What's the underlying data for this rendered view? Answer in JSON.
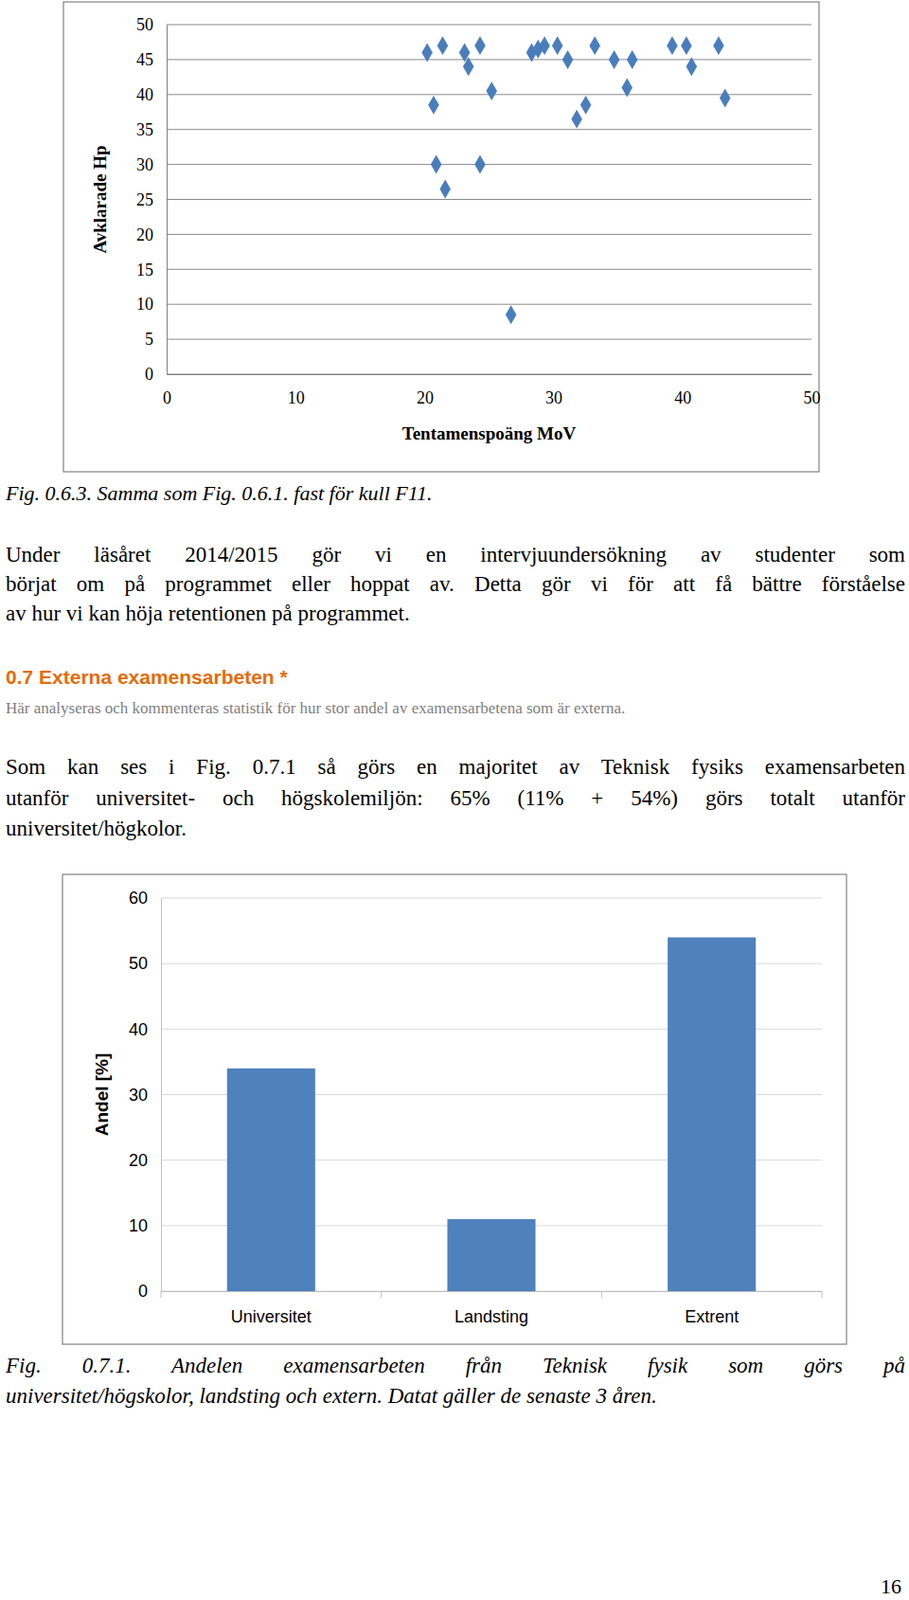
{
  "chart_data": [
    {
      "type": "scatter",
      "x_label": "Tentamenspoäng MoV",
      "y_label": "Avklarade Hp",
      "x": [
        20.2,
        20.7,
        20.9,
        21.4,
        21.6,
        23.1,
        23.4,
        24.3,
        24.3,
        25.2,
        26.7,
        28.3,
        28.8,
        29.3,
        30.3,
        31.1,
        31.8,
        32.5,
        33.2,
        34.7,
        35.7,
        36.1,
        39.2,
        40.3,
        40.7,
        42.8,
        43.3
      ],
      "values": [
        46,
        38.5,
        30,
        47,
        26.5,
        46,
        44,
        47,
        30,
        40.5,
        8.5,
        46,
        46.5,
        47,
        47,
        45,
        36.5,
        38.5,
        47,
        45,
        41,
        45,
        47,
        47,
        44,
        47,
        39.5
      ],
      "color": "#4a7ebb",
      "marker": "diamond",
      "xlim": [
        0,
        50
      ],
      "xticks": [
        0,
        10,
        20,
        30,
        40,
        50
      ],
      "ylim": [
        0,
        50
      ],
      "yticks": [
        0,
        5,
        10,
        15,
        20,
        25,
        30,
        35,
        40,
        45,
        50
      ],
      "grid": true
    },
    {
      "type": "bar",
      "y_label": "Andel [%]",
      "categories": [
        "Universitet",
        "Landsting",
        "Extrent"
      ],
      "values": [
        34,
        11,
        54
      ],
      "color": "#4f81bd",
      "ylim": [
        0,
        60
      ],
      "yticks": [
        0,
        10,
        20,
        30,
        40,
        50,
        60
      ],
      "grid": true
    }
  ],
  "document": {
    "caption_1": "Fig. 0.6.3. Samma som Fig. 0.6.1. fast för kull F11.",
    "paragraph_1": [
      "Under läsåret 2014/2015 gör vi en intervjuundersökning av studenter som",
      "börjat om på programmet eller hoppat av. Detta gör vi för att få bättre förståelse",
      "av hur vi kan höja retentionen på programmet."
    ],
    "heading": "0.7 Externa examensarbeten *",
    "heading_note": "Här analyseras och kommenteras statistik för hur stor andel av examensarbetena som är externa.",
    "paragraph_2": [
      "Som kan ses i Fig. 0.7.1 så görs en majoritet av Teknisk fysiks examensarbeten",
      "utanför universitet- och högskolemiljön: 65% (11% + 54%) görs totalt utanför",
      "universitet/högkolor."
    ],
    "caption_2": [
      "Fig.   0.7.1.   Andelen   examensarbeten   från   Teknisk   fysik   som   görs   på",
      "universitet/högskolor, landsting och extern. Datat gäller de senaste 3 åren."
    ],
    "page_number": "16"
  }
}
